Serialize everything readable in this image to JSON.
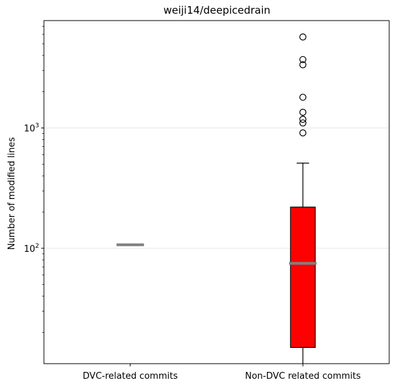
{
  "chart_data": {
    "type": "box",
    "title": "weiji14/deepicedrain",
    "xlabel": "",
    "ylabel": "Number of modified lines",
    "yscale": "log",
    "ylim": [
      11,
      7800
    ],
    "yticks": [
      {
        "value": 100,
        "base": "10",
        "exp": "2"
      },
      {
        "value": 1000,
        "base": "10",
        "exp": "3"
      }
    ],
    "grid": "horizontal, major ticks",
    "categories": [
      "DVC-related commits",
      "Non-DVC related commits"
    ],
    "boxes": [
      {
        "name": "DVC-related commits",
        "whisker_low": 107,
        "q1": 107,
        "median": 107,
        "q3": 107,
        "whisker_high": 107,
        "fliers": [],
        "fill": "#ffffff"
      },
      {
        "name": "Non-DVC related commits",
        "whisker_low": 11,
        "q1": 15,
        "median": 75,
        "q3": 220,
        "whisker_high": 510,
        "fliers": [
          910,
          1100,
          1180,
          1350,
          1800,
          3350,
          3700,
          5700
        ],
        "fill": "#ff0000"
      }
    ],
    "colors": {
      "box_fill": "#ff0000",
      "median_line": "#808080",
      "grid": "#e6e6e6"
    }
  }
}
